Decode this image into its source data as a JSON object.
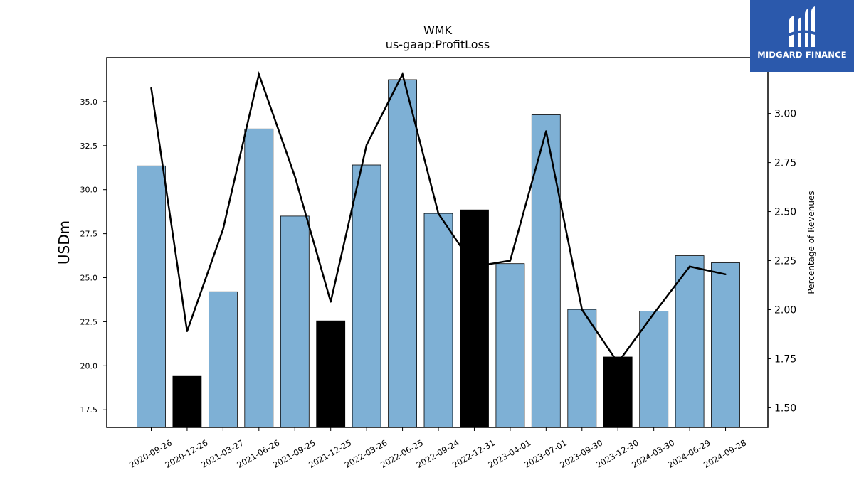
{
  "chart_data": {
    "type": "bar",
    "title": "WMK",
    "subtitle": "us-gaap:ProfitLoss",
    "ylabel": "USDm",
    "y2label": "Percentage of Revenues",
    "categories": [
      "2020-09-26",
      "2020-12-26",
      "2021-03-27",
      "2021-06-26",
      "2021-09-25",
      "2021-12-25",
      "2022-03-26",
      "2022-06-25",
      "2022-09-24",
      "2022-12-31",
      "2023-04-01",
      "2023-07-01",
      "2023-09-30",
      "2023-12-30",
      "2024-03-30",
      "2024-06-29",
      "2024-09-28"
    ],
    "series": [
      {
        "type": "bar",
        "values": [
          31.35,
          19.4,
          24.2,
          33.45,
          28.5,
          22.55,
          31.4,
          36.25,
          28.65,
          28.85,
          25.8,
          34.25,
          23.2,
          20.5,
          23.1,
          26.25,
          25.85
        ],
        "colors": [
          "#7eb0d5",
          "#000000",
          "#7eb0d5",
          "#7eb0d5",
          "#7eb0d5",
          "#000000",
          "#7eb0d5",
          "#7eb0d5",
          "#7eb0d5",
          "#000000",
          "#7eb0d5",
          "#7eb0d5",
          "#7eb0d5",
          "#000000",
          "#7eb0d5",
          "#7eb0d5",
          "#7eb0d5"
        ]
      },
      {
        "type": "line",
        "axis": "right",
        "values": [
          3.13,
          1.89,
          2.41,
          3.2,
          2.68,
          2.04,
          2.84,
          3.2,
          2.49,
          2.22,
          2.25,
          2.91,
          2.0,
          1.73,
          1.98,
          2.22,
          2.18
        ],
        "color": "#000000"
      }
    ],
    "ylim": [
      16.5,
      37.5
    ],
    "y2lim": [
      1.4,
      3.285
    ],
    "yticks": [
      "17.5",
      "20.0",
      "22.5",
      "25.0",
      "27.5",
      "30.0",
      "32.5",
      "35.0"
    ],
    "y2ticks": [
      "1.50",
      "1.75",
      "2.00",
      "2.25",
      "2.50",
      "2.75",
      "3.00"
    ],
    "grid": false,
    "legend": "none"
  },
  "logo": {
    "text": "MIDGARD FINANCE",
    "color": "#2b59ac"
  }
}
